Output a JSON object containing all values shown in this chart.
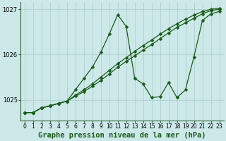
{
  "background_color": "#cce8e8",
  "plot_bg_color": "#cce8e8",
  "grid_color": "#aacccc",
  "line_color": "#1a5c1a",
  "xlabel": "Graphe pression niveau de la mer (hPa)",
  "ylim": [
    1024.55,
    1027.15
  ],
  "xlim": [
    -0.5,
    23.5
  ],
  "yticks": [
    1025,
    1026,
    1027
  ],
  "xticks": [
    0,
    1,
    2,
    3,
    4,
    5,
    6,
    7,
    8,
    9,
    10,
    11,
    12,
    13,
    14,
    15,
    16,
    17,
    18,
    19,
    20,
    21,
    22,
    23
  ],
  "xlabel_fontsize": 7.5,
  "tick_fontsize": 6,
  "marker_size": 2.5,
  "line_width": 0.9,
  "series": [
    [
      1024.72,
      1024.72,
      1024.82,
      1024.87,
      1024.92,
      1024.97,
      1025.22,
      1025.47,
      1025.72,
      1026.05,
      1026.45,
      1026.88,
      1026.62,
      1025.48,
      1025.35,
      1025.05,
      1025.07,
      1025.38,
      1025.05,
      1025.22,
      1025.95,
      1026.75,
      1026.9,
      1026.95
    ],
    [
      1024.72,
      1024.72,
      1024.82,
      1024.87,
      1024.92,
      1024.97,
      1025.1,
      1025.22,
      1025.35,
      1025.5,
      1025.65,
      1025.8,
      1025.93,
      1026.07,
      1026.2,
      1026.32,
      1026.45,
      1026.57,
      1026.68,
      1026.78,
      1026.87,
      1026.95,
      1027.0,
      1027.02
    ],
    [
      1024.72,
      1024.72,
      1024.82,
      1024.87,
      1024.92,
      1024.97,
      1025.08,
      1025.18,
      1025.3,
      1025.43,
      1025.57,
      1025.72,
      1025.85,
      1025.97,
      1026.1,
      1026.22,
      1026.35,
      1026.48,
      1026.6,
      1026.7,
      1026.8,
      1026.9,
      1026.97,
      1027.0
    ]
  ]
}
